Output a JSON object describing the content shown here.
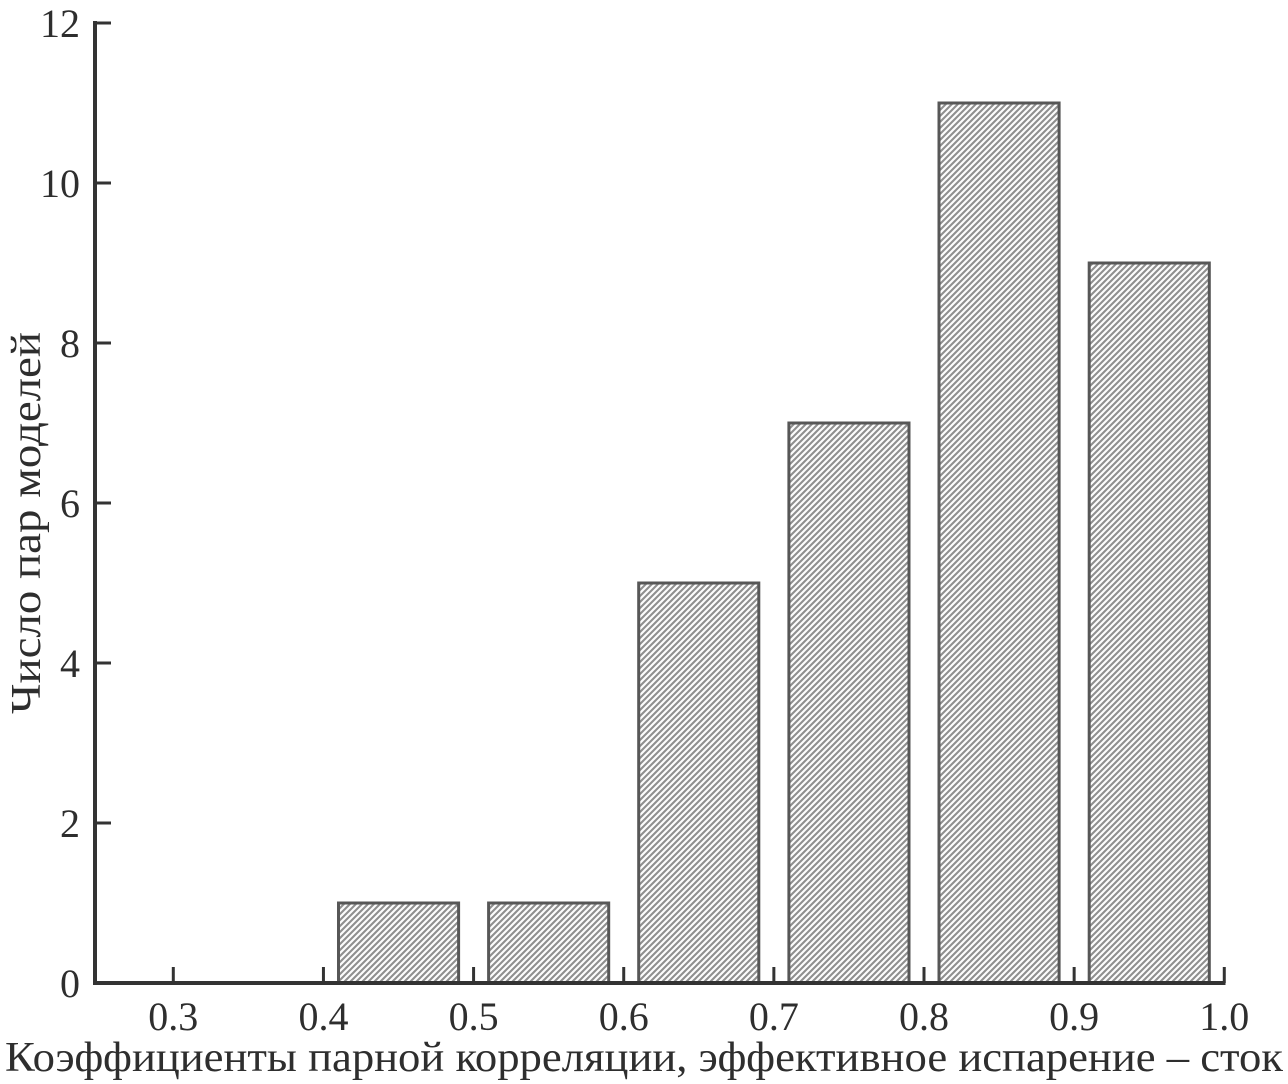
{
  "chart_data": {
    "type": "bar",
    "subtype": "histogram",
    "title": "",
    "xlabel": "Коэффициенты парной корреляции, эффективное испарение – сток",
    "ylabel": "Число пар моделей",
    "x_tick_labels": [
      "0.3",
      "0.4",
      "0.5",
      "0.6",
      "0.7",
      "0.8",
      "0.9",
      "1.0"
    ],
    "x_tick_values": [
      0.3,
      0.4,
      0.5,
      0.6,
      0.7,
      0.8,
      0.9,
      1.0
    ],
    "y_tick_labels": [
      "0",
      "2",
      "4",
      "6",
      "8",
      "10",
      "12"
    ],
    "y_tick_values": [
      0,
      2,
      4,
      6,
      8,
      10,
      12
    ],
    "xlim": [
      0.248,
      1.001
    ],
    "ylim": [
      0,
      12
    ],
    "grid": false,
    "legend": false,
    "bar_width": 0.08,
    "bins": [
      {
        "range": "0.4–0.5",
        "center": 0.45,
        "value": 1
      },
      {
        "range": "0.5–0.6",
        "center": 0.55,
        "value": 1
      },
      {
        "range": "0.6–0.7",
        "center": 0.65,
        "value": 5
      },
      {
        "range": "0.7–0.8",
        "center": 0.75,
        "value": 7
      },
      {
        "range": "0.8–0.9",
        "center": 0.85,
        "value": 11
      },
      {
        "range": "0.9–1.0",
        "center": 0.95,
        "value": 9
      }
    ],
    "colors": {
      "background": "#ffffff",
      "axis": "#333333",
      "text": "#2e2e2e",
      "bar_border": "#575757",
      "bar_hatch": "#8f8f8f",
      "bar_hatch_background": "#fdfdfd"
    },
    "bar_fill_style": "diagonal-hatch"
  }
}
